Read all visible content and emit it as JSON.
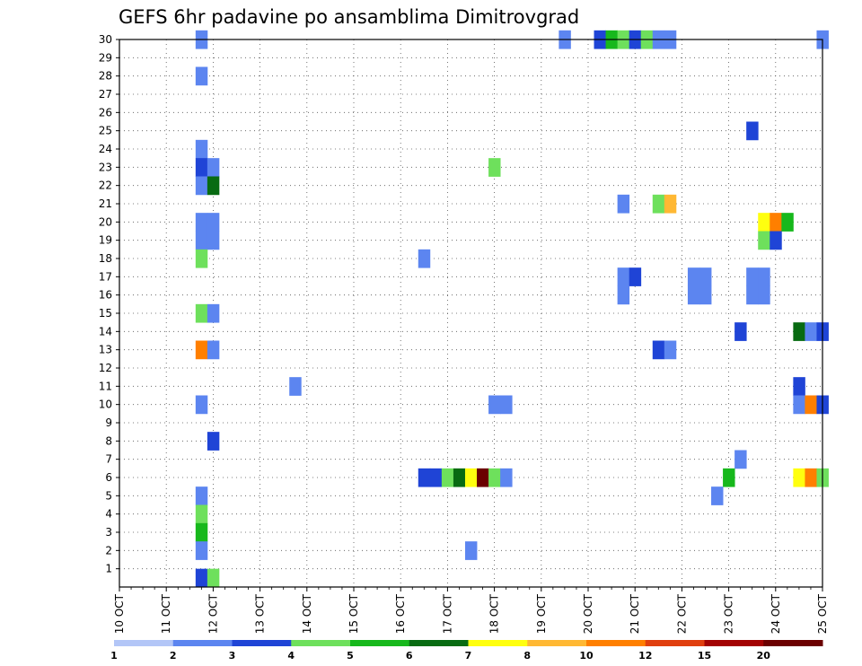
{
  "chart_data": {
    "type": "heatmap",
    "title": "GEFS 6hr padavine po ansamblima Dimitrovgrad",
    "x_tick_labels": [
      "10 OCT",
      "11 OCT",
      "12 OCT",
      "13 OCT",
      "14 OCT",
      "15 OCT",
      "16 OCT",
      "17 OCT",
      "18 OCT",
      "19 OCT",
      "20 OCT",
      "21 OCT",
      "22 OCT",
      "23 OCT",
      "24 OCT",
      "25 OCT"
    ],
    "x_range_days": [
      10,
      25
    ],
    "y_tick_labels": [
      "1",
      "2",
      "3",
      "4",
      "5",
      "6",
      "7",
      "8",
      "9",
      "10",
      "11",
      "12",
      "13",
      "14",
      "15",
      "16",
      "17",
      "18",
      "19",
      "20",
      "21",
      "22",
      "23",
      "24",
      "25",
      "26",
      "27",
      "28",
      "29",
      "30"
    ],
    "y_range": [
      0,
      30
    ],
    "grid": true,
    "colorbar": {
      "labels": [
        "1",
        "2",
        "3",
        "4",
        "5",
        "6",
        "7",
        "8",
        "10",
        "12",
        "15",
        "20"
      ],
      "colors": [
        "#b3c6f7",
        "#5c85f0",
        "#1f44d6",
        "#6ee05c",
        "#17b81c",
        "#086b12",
        "#ffff0f",
        "#ffb833",
        "#ff7f00",
        "#e03f0f",
        "#a30303",
        "#6b0000"
      ]
    },
    "cells": [
      [
        11.75,
        30,
        1
      ],
      [
        19.5,
        30,
        1
      ],
      [
        20.25,
        30,
        2
      ],
      [
        20.5,
        30,
        4
      ],
      [
        20.75,
        30,
        3
      ],
      [
        21.0,
        30,
        2
      ],
      [
        21.25,
        30,
        3
      ],
      [
        21.5,
        30,
        1
      ],
      [
        21.75,
        30,
        1
      ],
      [
        25.0,
        30,
        1
      ],
      [
        11.75,
        28,
        1
      ],
      [
        23.5,
        25,
        2
      ],
      [
        11.75,
        24,
        1
      ],
      [
        11.75,
        23,
        2
      ],
      [
        12.0,
        23,
        1
      ],
      [
        18.0,
        23,
        3
      ],
      [
        11.75,
        22,
        1
      ],
      [
        12.0,
        22,
        5
      ],
      [
        20.75,
        21,
        1
      ],
      [
        21.5,
        21,
        3
      ],
      [
        21.75,
        21,
        7
      ],
      [
        11.75,
        20,
        1
      ],
      [
        12.0,
        20,
        1
      ],
      [
        23.75,
        20,
        6
      ],
      [
        24.0,
        20,
        8
      ],
      [
        24.25,
        20,
        4
      ],
      [
        11.75,
        19,
        1
      ],
      [
        12.0,
        19,
        1
      ],
      [
        23.75,
        19,
        3
      ],
      [
        24.0,
        19,
        2
      ],
      [
        11.75,
        18,
        3
      ],
      [
        16.5,
        18,
        1
      ],
      [
        20.75,
        17,
        1
      ],
      [
        21.0,
        17,
        2
      ],
      [
        22.25,
        17,
        1
      ],
      [
        22.5,
        17,
        1
      ],
      [
        23.5,
        17,
        1
      ],
      [
        23.75,
        17,
        1
      ],
      [
        20.75,
        16,
        1
      ],
      [
        22.25,
        16,
        1
      ],
      [
        22.5,
        16,
        1
      ],
      [
        23.5,
        16,
        1
      ],
      [
        23.75,
        16,
        1
      ],
      [
        11.75,
        15,
        3
      ],
      [
        12.0,
        15,
        1
      ],
      [
        23.25,
        14,
        2
      ],
      [
        24.5,
        14,
        5
      ],
      [
        24.75,
        14,
        1
      ],
      [
        25.0,
        14,
        2
      ],
      [
        11.75,
        13,
        8
      ],
      [
        12.0,
        13,
        1
      ],
      [
        21.5,
        13,
        2
      ],
      [
        21.75,
        13,
        1
      ],
      [
        13.75,
        11,
        1
      ],
      [
        24.5,
        11,
        2
      ],
      [
        11.75,
        10,
        1
      ],
      [
        18.0,
        10,
        1
      ],
      [
        18.25,
        10,
        1
      ],
      [
        24.5,
        10,
        1
      ],
      [
        24.75,
        10,
        8
      ],
      [
        25.0,
        10,
        2
      ],
      [
        12.0,
        8,
        2
      ],
      [
        23.25,
        7,
        1
      ],
      [
        16.5,
        6,
        2
      ],
      [
        16.75,
        6,
        2
      ],
      [
        17.0,
        6,
        3
      ],
      [
        17.25,
        6,
        5
      ],
      [
        17.5,
        6,
        6
      ],
      [
        17.75,
        6,
        11
      ],
      [
        18.0,
        6,
        3
      ],
      [
        18.25,
        6,
        1
      ],
      [
        23.0,
        6,
        4
      ],
      [
        24.5,
        6,
        6
      ],
      [
        24.75,
        6,
        8
      ],
      [
        25.0,
        6,
        3
      ],
      [
        11.75,
        5,
        1
      ],
      [
        22.75,
        5,
        1
      ],
      [
        11.75,
        4,
        3
      ],
      [
        11.75,
        3,
        4
      ],
      [
        11.75,
        2,
        1
      ],
      [
        17.5,
        2,
        1
      ],
      [
        11.75,
        0.5,
        2
      ],
      [
        12.0,
        0.5,
        3
      ]
    ]
  }
}
